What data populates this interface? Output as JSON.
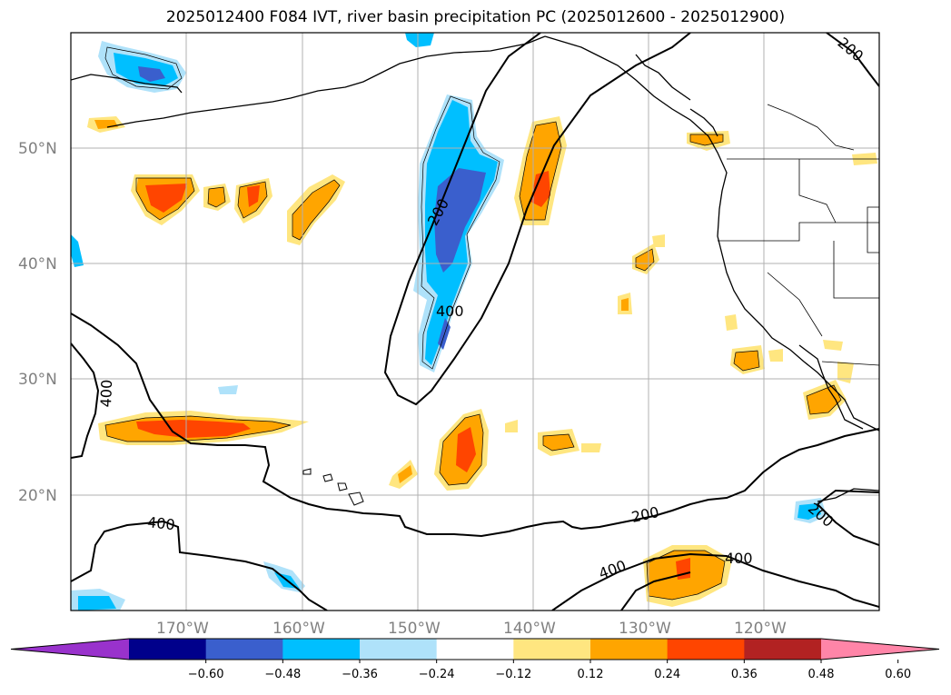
{
  "title": "2025012400 F084 IVT, river basin precipitation PC (2025012600 - 2025012900)",
  "map": {
    "lat_labels": [
      "50°N",
      "40°N",
      "30°N",
      "20°N"
    ],
    "lon_labels": [
      "170°W",
      "160°W",
      "150°W",
      "140°W",
      "130°W",
      "120°W"
    ],
    "lat_values": [
      50,
      40,
      30,
      20
    ],
    "lon_values": [
      -170,
      -160,
      -150,
      -140,
      -130,
      -120
    ],
    "extent": {
      "lon_min": -180,
      "lon_max": -110,
      "lat_min": 10,
      "lat_max": 60
    },
    "grid": true,
    "contour_labels": [
      "200",
      "400",
      "400",
      "400",
      "200",
      "400",
      "400",
      "200",
      "200"
    ]
  },
  "colorbar": {
    "tick_labels": [
      "−0.60",
      "−0.48",
      "−0.36",
      "−0.24",
      "−0.12",
      "0.12",
      "0.24",
      "0.36",
      "0.48",
      "0.60"
    ],
    "colors": [
      "#9932cc",
      "#00008b",
      "#3a5fcd",
      "#00bfff",
      "#afe2fa",
      "#ffffff",
      "#ffe680",
      "#ffa500",
      "#ff4500",
      "#b22222",
      "#ff85a8"
    ]
  },
  "colors": {
    "blue_light": "#afe2fa",
    "blue_mid": "#00bfff",
    "blue_dark": "#3a5fcd",
    "yellow": "#ffe680",
    "orange": "#ffa500",
    "red": "#ff4500"
  }
}
